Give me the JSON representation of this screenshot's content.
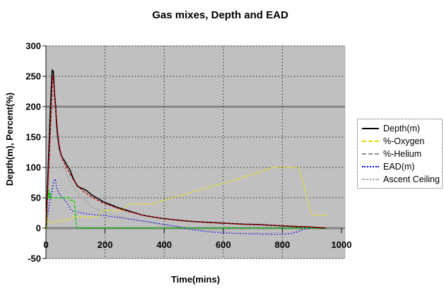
{
  "chart_data": {
    "type": "line",
    "title": "Gas mixes, Depth and EAD",
    "xlabel": "Time(mins)",
    "ylabel": "Depth(m), Percent(%)",
    "xlim": [
      0,
      1000
    ],
    "ylim": [
      -50,
      300
    ],
    "x_ticks": [
      0,
      200,
      400,
      600,
      800,
      1000
    ],
    "y_ticks": [
      300,
      250,
      200,
      150,
      100,
      50,
      0,
      -50
    ],
    "grid": "horizontal dotted lines every 50, vertical dotted lines every 200; thick solid gray emphasis lines at y=0 and y=200",
    "legend_position": "right",
    "plot_bg": "#c0c0c0",
    "emphasis_line_color": "#848484",
    "series": [
      {
        "name": "Depth(m)",
        "in_legend": true,
        "z": 5,
        "color": "#000000",
        "legend_color": "#000000",
        "dash": null,
        "swatch_style": "solid",
        "width": 1.6,
        "points": [
          [
            0,
            0
          ],
          [
            16,
            210
          ],
          [
            21,
            260
          ],
          [
            25,
            258
          ],
          [
            29,
            222
          ],
          [
            33,
            200
          ],
          [
            36,
            172
          ],
          [
            40,
            150
          ],
          [
            46,
            130
          ],
          [
            52,
            120
          ],
          [
            58,
            114
          ],
          [
            64,
            110
          ],
          [
            70,
            104
          ],
          [
            76,
            100
          ],
          [
            82,
            95
          ],
          [
            88,
            87
          ],
          [
            94,
            80
          ],
          [
            100,
            75
          ],
          [
            106,
            69
          ],
          [
            114,
            67
          ],
          [
            124,
            65
          ],
          [
            134,
            63
          ],
          [
            144,
            59
          ],
          [
            154,
            55
          ],
          [
            164,
            52
          ],
          [
            178,
            48
          ],
          [
            192,
            44
          ],
          [
            206,
            41
          ],
          [
            222,
            38
          ],
          [
            242,
            34
          ],
          [
            262,
            31
          ],
          [
            282,
            28
          ],
          [
            302,
            25
          ],
          [
            322,
            22
          ],
          [
            342,
            20
          ],
          [
            366,
            18
          ],
          [
            392,
            16
          ],
          [
            420,
            14.5
          ],
          [
            450,
            13
          ],
          [
            480,
            11.5
          ],
          [
            515,
            10.5
          ],
          [
            550,
            9.5
          ],
          [
            590,
            8.5
          ],
          [
            630,
            7.5
          ],
          [
            670,
            6.5
          ],
          [
            710,
            6
          ],
          [
            750,
            5
          ],
          [
            790,
            4
          ],
          [
            830,
            3
          ],
          [
            860,
            2.5
          ],
          [
            890,
            2
          ],
          [
            915,
            1
          ],
          [
            945,
            0
          ]
        ]
      },
      {
        "name": "%-Oxygen",
        "in_legend": true,
        "z": 4,
        "color": "#e8e800",
        "legend_color": "#e0d800",
        "dash": "3,2.5",
        "swatch_style": "dashed",
        "width": 1.3,
        "points": [
          [
            0,
            27
          ],
          [
            4,
            18
          ],
          [
            8,
            11
          ],
          [
            15,
            9.5
          ],
          [
            30,
            10
          ],
          [
            50,
            12
          ],
          [
            70,
            13.5
          ],
          [
            88,
            15
          ],
          [
            94,
            18
          ],
          [
            110,
            19
          ],
          [
            176,
            19
          ],
          [
            184,
            24
          ],
          [
            191,
            29
          ],
          [
            256,
            29
          ],
          [
            263,
            33
          ],
          [
            288,
            40
          ],
          [
            358,
            40
          ],
          [
            400,
            46
          ],
          [
            450,
            53
          ],
          [
            500,
            60
          ],
          [
            550,
            67
          ],
          [
            600,
            74
          ],
          [
            650,
            81
          ],
          [
            700,
            89
          ],
          [
            745,
            96
          ],
          [
            768,
            100
          ],
          [
            855,
            100
          ],
          [
            868,
            80
          ],
          [
            882,
            52
          ],
          [
            896,
            27
          ],
          [
            904,
            21
          ],
          [
            950,
            21
          ]
        ]
      },
      {
        "name": "%-Helium",
        "in_legend": true,
        "z": 3,
        "color": "#00d000",
        "legend_color": "#909090",
        "dash": "4,2",
        "swatch_style": "dashed",
        "width": 1.4,
        "points": [
          [
            0,
            0
          ],
          [
            3,
            0
          ],
          [
            4,
            48
          ],
          [
            7,
            50
          ],
          [
            9,
            64
          ],
          [
            11,
            49
          ],
          [
            13,
            58
          ],
          [
            16,
            50
          ],
          [
            20,
            50
          ],
          [
            78,
            50
          ],
          [
            83,
            46
          ],
          [
            96,
            45
          ],
          [
            99,
            28
          ],
          [
            102,
            8
          ],
          [
            104,
            0
          ],
          [
            950,
            0
          ]
        ]
      },
      {
        "name": "EAD(m)",
        "in_legend": true,
        "z": 2,
        "color": "#0000ee",
        "legend_color": "#0000ee",
        "dash": "1.5,2.5",
        "swatch_style": "dotted",
        "width": 1.3,
        "points": [
          [
            0,
            0
          ],
          [
            14,
            48
          ],
          [
            20,
            60
          ],
          [
            27,
            78
          ],
          [
            31,
            81
          ],
          [
            35,
            70
          ],
          [
            41,
            60
          ],
          [
            48,
            54
          ],
          [
            56,
            50
          ],
          [
            63,
            46
          ],
          [
            70,
            43
          ],
          [
            77,
            37
          ],
          [
            83,
            31
          ],
          [
            89,
            28
          ],
          [
            102,
            27
          ],
          [
            122,
            25
          ],
          [
            147,
            23
          ],
          [
            172,
            22
          ],
          [
            197,
            21
          ],
          [
            222,
            19
          ],
          [
            252,
            17
          ],
          [
            282,
            15
          ],
          [
            312,
            13
          ],
          [
            342,
            11
          ],
          [
            372,
            8.5
          ],
          [
            402,
            6
          ],
          [
            432,
            4
          ],
          [
            457,
            1.5
          ],
          [
            477,
            -1
          ],
          [
            502,
            -3
          ],
          [
            532,
            -5
          ],
          [
            562,
            -6.5
          ],
          [
            602,
            -8
          ],
          [
            652,
            -9
          ],
          [
            702,
            -9.5
          ],
          [
            752,
            -10
          ],
          [
            802,
            -10
          ],
          [
            832,
            -9
          ],
          [
            852,
            -6
          ],
          [
            866,
            -3
          ],
          [
            880,
            -1
          ],
          [
            896,
            -0.5
          ]
        ]
      },
      {
        "name": "Ascent Ceiling",
        "in_legend": true,
        "z": 1,
        "color": "#8c8c8c",
        "legend_color": "#a0a0a0",
        "dash": "1.5,2.5",
        "swatch_style": "dotted",
        "width": 1.2,
        "points": [
          [
            0,
            0
          ],
          [
            12,
            100
          ],
          [
            17,
            180
          ],
          [
            21,
            222
          ],
          [
            26,
            220
          ],
          [
            30,
            198
          ],
          [
            35,
            172
          ],
          [
            41,
            143
          ],
          [
            48,
            120
          ],
          [
            56,
            106
          ],
          [
            64,
            96
          ],
          [
            72,
            87
          ],
          [
            80,
            79
          ],
          [
            88,
            71
          ],
          [
            96,
            65
          ],
          [
            106,
            58
          ],
          [
            118,
            51
          ],
          [
            130,
            46
          ],
          [
            145,
            40
          ],
          [
            160,
            34
          ],
          [
            180,
            29.5
          ],
          [
            200,
            26
          ],
          [
            225,
            22
          ],
          [
            250,
            19
          ],
          [
            275,
            16
          ],
          [
            300,
            13.5
          ],
          [
            330,
            10.5
          ],
          [
            360,
            8
          ],
          [
            395,
            5.5
          ],
          [
            430,
            3.5
          ],
          [
            460,
            1.5
          ],
          [
            480,
            0
          ],
          [
            510,
            -2
          ],
          [
            540,
            -3.5
          ],
          [
            575,
            -5
          ],
          [
            615,
            -6.5
          ],
          [
            660,
            -7.5
          ],
          [
            710,
            -8
          ],
          [
            760,
            -8
          ],
          [
            810,
            -7.5
          ],
          [
            835,
            -7
          ],
          [
            850,
            -5
          ],
          [
            862,
            -2.5
          ],
          [
            874,
            -1
          ],
          [
            888,
            -0.5
          ],
          [
            948,
            -0.5
          ]
        ]
      },
      {
        "name": "",
        "in_legend": false,
        "z": 6,
        "color": "#cc0000",
        "legend_color": "#cc0000",
        "dash": "4,2",
        "swatch_style": "dashed",
        "width": 1.2,
        "points": [
          [
            0,
            0
          ],
          [
            19,
            200
          ],
          [
            23,
            252
          ],
          [
            27,
            235
          ],
          [
            31,
            208
          ],
          [
            35,
            185
          ],
          [
            39,
            162
          ],
          [
            44,
            140
          ],
          [
            51,
            122
          ],
          [
            59,
            110
          ],
          [
            67,
            102
          ],
          [
            75,
            95
          ],
          [
            83,
            88
          ],
          [
            91,
            81
          ],
          [
            99,
            75
          ],
          [
            109,
            69
          ],
          [
            119,
            64
          ],
          [
            131,
            59
          ],
          [
            143,
            55
          ],
          [
            156,
            51
          ],
          [
            171,
            47
          ],
          [
            186,
            43
          ],
          [
            201,
            40
          ],
          [
            221,
            36.5
          ],
          [
            241,
            33
          ],
          [
            261,
            30
          ],
          [
            281,
            27
          ],
          [
            301,
            24.5
          ],
          [
            321,
            22
          ],
          [
            346,
            19.5
          ],
          [
            371,
            17.5
          ],
          [
            401,
            15.5
          ],
          [
            431,
            14
          ],
          [
            461,
            12.5
          ],
          [
            491,
            11
          ],
          [
            521,
            10
          ],
          [
            561,
            9
          ],
          [
            601,
            8
          ],
          [
            641,
            7
          ],
          [
            681,
            6.2
          ],
          [
            721,
            5.5
          ],
          [
            761,
            4.6
          ],
          [
            801,
            3.8
          ],
          [
            841,
            3
          ],
          [
            871,
            2.2
          ],
          [
            901,
            1.6
          ],
          [
            931,
            1
          ],
          [
            952,
            0.5
          ]
        ]
      }
    ]
  }
}
